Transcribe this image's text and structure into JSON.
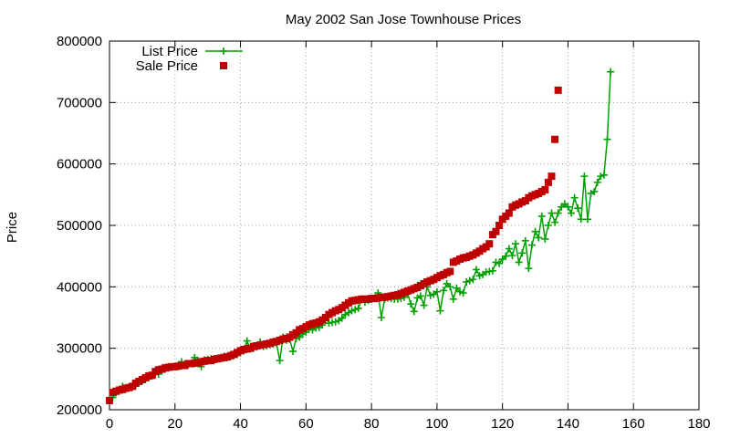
{
  "chart_data": {
    "type": "line",
    "title": "May 2002 San Jose Townhouse Prices",
    "xlabel": "",
    "ylabel": "Price",
    "xlim": [
      0,
      180
    ],
    "ylim": [
      200000,
      800000
    ],
    "x_ticks": [
      0,
      20,
      40,
      60,
      80,
      100,
      120,
      140,
      160,
      180
    ],
    "y_ticks": [
      200000,
      300000,
      400000,
      500000,
      600000,
      700000,
      800000
    ],
    "grid": true,
    "legend": "top-left",
    "series": [
      {
        "name": "List Price",
        "color": "#00a000",
        "marker": "plus",
        "line": true,
        "values": [
          [
            1,
            220000
          ],
          [
            2,
            228000
          ],
          [
            3,
            232000
          ],
          [
            4,
            238000
          ],
          [
            5,
            235000
          ],
          [
            6,
            237000
          ],
          [
            7,
            238000
          ],
          [
            8,
            240000
          ],
          [
            9,
            244000
          ],
          [
            10,
            247000
          ],
          [
            11,
            250000
          ],
          [
            12,
            253000
          ],
          [
            13,
            255000
          ],
          [
            14,
            258000
          ],
          [
            15,
            258000
          ],
          [
            16,
            264000
          ],
          [
            17,
            266000
          ],
          [
            18,
            268000
          ],
          [
            19,
            269000
          ],
          [
            20,
            270000
          ],
          [
            21,
            271000
          ],
          [
            22,
            278000
          ],
          [
            23,
            272000
          ],
          [
            24,
            273000
          ],
          [
            25,
            275000
          ],
          [
            26,
            285000
          ],
          [
            27,
            280000
          ],
          [
            28,
            270000
          ],
          [
            29,
            281000
          ],
          [
            30,
            282000
          ],
          [
            31,
            283000
          ],
          [
            32,
            283000
          ],
          [
            33,
            284000
          ],
          [
            34,
            285000
          ],
          [
            35,
            287000
          ],
          [
            36,
            285000
          ],
          [
            37,
            288000
          ],
          [
            38,
            289000
          ],
          [
            39,
            290000
          ],
          [
            40,
            293000
          ],
          [
            41,
            296000
          ],
          [
            42,
            312000
          ],
          [
            43,
            299000
          ],
          [
            44,
            300000
          ],
          [
            45,
            302000
          ],
          [
            46,
            310000
          ],
          [
            47,
            303000
          ],
          [
            48,
            304000
          ],
          [
            49,
            306000
          ],
          [
            50,
            307000
          ],
          [
            51,
            308000
          ],
          [
            52,
            280000
          ],
          [
            53,
            318000
          ],
          [
            54,
            313000
          ],
          [
            55,
            315000
          ],
          [
            56,
            295000
          ],
          [
            57,
            316000
          ],
          [
            58,
            318000
          ],
          [
            59,
            323000
          ],
          [
            60,
            326000
          ],
          [
            61,
            333000
          ],
          [
            62,
            330000
          ],
          [
            63,
            333000
          ],
          [
            64,
            334000
          ],
          [
            65,
            338000
          ],
          [
            66,
            350000
          ],
          [
            67,
            341000
          ],
          [
            68,
            342000
          ],
          [
            69,
            343000
          ],
          [
            70,
            345000
          ],
          [
            71,
            349000
          ],
          [
            72,
            355000
          ],
          [
            73,
            358000
          ],
          [
            74,
            361000
          ],
          [
            75,
            363000
          ],
          [
            76,
            365000
          ],
          [
            77,
            380000
          ],
          [
            78,
            375000
          ],
          [
            79,
            378000
          ],
          [
            80,
            380000
          ],
          [
            81,
            382000
          ],
          [
            82,
            390000
          ],
          [
            83,
            350000
          ],
          [
            84,
            380000
          ],
          [
            85,
            382000
          ],
          [
            86,
            381000
          ],
          [
            87,
            380000
          ],
          [
            88,
            380000
          ],
          [
            89,
            381000
          ],
          [
            90,
            383000
          ],
          [
            91,
            390000
          ],
          [
            92,
            372000
          ],
          [
            93,
            360000
          ],
          [
            94,
            382000
          ],
          [
            95,
            385000
          ],
          [
            96,
            370000
          ],
          [
            97,
            400000
          ],
          [
            98,
            386000
          ],
          [
            99,
            388000
          ],
          [
            100,
            392000
          ],
          [
            101,
            361000
          ],
          [
            102,
            394000
          ],
          [
            103,
            405000
          ],
          [
            104,
            400000
          ],
          [
            105,
            380000
          ],
          [
            106,
            398000
          ],
          [
            107,
            392000
          ],
          [
            108,
            390000
          ],
          [
            109,
            408000
          ],
          [
            110,
            410000
          ],
          [
            111,
            412000
          ],
          [
            112,
            428000
          ],
          [
            113,
            418000
          ],
          [
            114,
            420000
          ],
          [
            115,
            424000
          ],
          [
            116,
            425000
          ],
          [
            117,
            426000
          ],
          [
            118,
            440000
          ],
          [
            119,
            438000
          ],
          [
            120,
            445000
          ],
          [
            121,
            450000
          ],
          [
            122,
            462000
          ],
          [
            123,
            451000
          ],
          [
            124,
            470000
          ],
          [
            125,
            440000
          ],
          [
            126,
            455000
          ],
          [
            127,
            475000
          ],
          [
            128,
            430000
          ],
          [
            129,
            468000
          ],
          [
            130,
            490000
          ],
          [
            131,
            480000
          ],
          [
            132,
            515000
          ],
          [
            133,
            478000
          ],
          [
            134,
            500000
          ],
          [
            135,
            520000
          ],
          [
            136,
            505000
          ],
          [
            137,
            520000
          ],
          [
            138,
            530000
          ],
          [
            139,
            535000
          ],
          [
            140,
            530000
          ],
          [
            141,
            520000
          ],
          [
            142,
            545000
          ],
          [
            143,
            528000
          ],
          [
            144,
            510000
          ],
          [
            145,
            580000
          ],
          [
            146,
            510000
          ],
          [
            147,
            552000
          ],
          [
            148,
            555000
          ],
          [
            149,
            570000
          ],
          [
            150,
            580000
          ],
          [
            151,
            582000
          ],
          [
            152,
            640000
          ],
          [
            153,
            750000
          ]
        ]
      },
      {
        "name": "Sale Price",
        "color": "#c00000",
        "marker": "square",
        "line": false,
        "values": [
          [
            0,
            215000
          ],
          [
            1,
            228000
          ],
          [
            2,
            230000
          ],
          [
            3,
            232000
          ],
          [
            4,
            233000
          ],
          [
            5,
            235000
          ],
          [
            6,
            236000
          ],
          [
            7,
            238000
          ],
          [
            8,
            243000
          ],
          [
            9,
            246000
          ],
          [
            10,
            249000
          ],
          [
            11,
            252000
          ],
          [
            12,
            255000
          ],
          [
            13,
            256000
          ],
          [
            14,
            262000
          ],
          [
            15,
            265000
          ],
          [
            16,
            266000
          ],
          [
            17,
            268000
          ],
          [
            18,
            269000
          ],
          [
            19,
            270000
          ],
          [
            20,
            270000
          ],
          [
            21,
            271000
          ],
          [
            22,
            272000
          ],
          [
            23,
            272000
          ],
          [
            24,
            275000
          ],
          [
            25,
            275000
          ],
          [
            26,
            276000
          ],
          [
            27,
            276000
          ],
          [
            28,
            278000
          ],
          [
            29,
            279000
          ],
          [
            30,
            280000
          ],
          [
            31,
            280000
          ],
          [
            32,
            282000
          ],
          [
            33,
            283000
          ],
          [
            34,
            284000
          ],
          [
            35,
            285000
          ],
          [
            36,
            286000
          ],
          [
            37,
            288000
          ],
          [
            38,
            290000
          ],
          [
            39,
            293000
          ],
          [
            40,
            296000
          ],
          [
            41,
            298000
          ],
          [
            42,
            299000
          ],
          [
            43,
            300000
          ],
          [
            44,
            303000
          ],
          [
            45,
            304000
          ],
          [
            46,
            305000
          ],
          [
            47,
            306000
          ],
          [
            48,
            307000
          ],
          [
            49,
            308000
          ],
          [
            50,
            310000
          ],
          [
            51,
            311000
          ],
          [
            52,
            313000
          ],
          [
            53,
            315000
          ],
          [
            54,
            316000
          ],
          [
            55,
            318000
          ],
          [
            56,
            322000
          ],
          [
            57,
            325000
          ],
          [
            58,
            330000
          ],
          [
            59,
            332000
          ],
          [
            60,
            335000
          ],
          [
            61,
            338000
          ],
          [
            62,
            340000
          ],
          [
            63,
            341000
          ],
          [
            64,
            343000
          ],
          [
            65,
            346000
          ],
          [
            66,
            350000
          ],
          [
            67,
            355000
          ],
          [
            68,
            358000
          ],
          [
            69,
            361000
          ],
          [
            70,
            363000
          ],
          [
            71,
            366000
          ],
          [
            72,
            370000
          ],
          [
            73,
            374000
          ],
          [
            74,
            377000
          ],
          [
            75,
            378000
          ],
          [
            76,
            379000
          ],
          [
            77,
            380000
          ],
          [
            78,
            380000
          ],
          [
            79,
            380000
          ],
          [
            80,
            381000
          ],
          [
            81,
            381000
          ],
          [
            82,
            382000
          ],
          [
            83,
            383000
          ],
          [
            84,
            383000
          ],
          [
            85,
            384000
          ],
          [
            86,
            385000
          ],
          [
            87,
            386000
          ],
          [
            88,
            387000
          ],
          [
            89,
            389000
          ],
          [
            90,
            391000
          ],
          [
            91,
            393000
          ],
          [
            92,
            395000
          ],
          [
            93,
            397000
          ],
          [
            94,
            399000
          ],
          [
            95,
            402000
          ],
          [
            96,
            405000
          ],
          [
            97,
            408000
          ],
          [
            98,
            410000
          ],
          [
            99,
            412000
          ],
          [
            100,
            415000
          ],
          [
            101,
            418000
          ],
          [
            102,
            420000
          ],
          [
            103,
            423000
          ],
          [
            104,
            425000
          ],
          [
            105,
            440000
          ],
          [
            106,
            442000
          ],
          [
            107,
            445000
          ],
          [
            108,
            447000
          ],
          [
            109,
            448000
          ],
          [
            110,
            450000
          ],
          [
            111,
            452000
          ],
          [
            112,
            455000
          ],
          [
            113,
            458000
          ],
          [
            114,
            462000
          ],
          [
            115,
            465000
          ],
          [
            116,
            470000
          ],
          [
            117,
            485000
          ],
          [
            118,
            490000
          ],
          [
            119,
            500000
          ],
          [
            120,
            510000
          ],
          [
            121,
            515000
          ],
          [
            122,
            520000
          ],
          [
            123,
            530000
          ],
          [
            124,
            533000
          ],
          [
            125,
            535000
          ],
          [
            126,
            538000
          ],
          [
            127,
            540000
          ],
          [
            128,
            545000
          ],
          [
            129,
            548000
          ],
          [
            130,
            550000
          ],
          [
            131,
            552000
          ],
          [
            132,
            555000
          ],
          [
            133,
            558000
          ],
          [
            134,
            570000
          ],
          [
            135,
            580000
          ],
          [
            136,
            640000
          ],
          [
            137,
            720000
          ]
        ]
      }
    ]
  }
}
